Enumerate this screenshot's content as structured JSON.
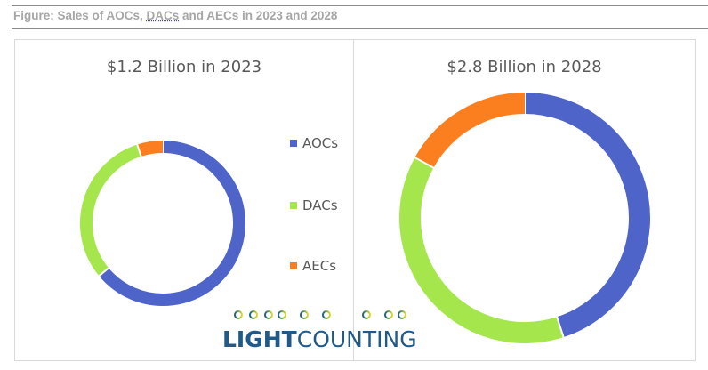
{
  "figure_title_parts": [
    "Figure: Sales of AOCs, ",
    "DACs",
    " and AECs in 2023 and 2028"
  ],
  "colors": {
    "AOCs": "#4f64c9",
    "DACs": "#a6e64d",
    "AECs": "#fb7f1f"
  },
  "chart_data": [
    {
      "type": "pie",
      "subtype": "donut",
      "title": "$1.2 Billion in 2023",
      "categories": [
        "AOCs",
        "DACs",
        "AECs"
      ],
      "values": [
        64,
        31,
        5
      ],
      "units": "percent share (estimated)",
      "legend": "between charts"
    },
    {
      "type": "pie",
      "subtype": "donut",
      "title": "$2.8 Billion in 2028",
      "categories": [
        "AOCs",
        "DACs",
        "AECs"
      ],
      "values": [
        45,
        38,
        17
      ],
      "units": "percent share (estimated)"
    }
  ],
  "legend": [
    "AOCs",
    "DACs",
    "AECs"
  ],
  "logo": {
    "bold": "LIGHT",
    "regular": "COUNTING"
  }
}
